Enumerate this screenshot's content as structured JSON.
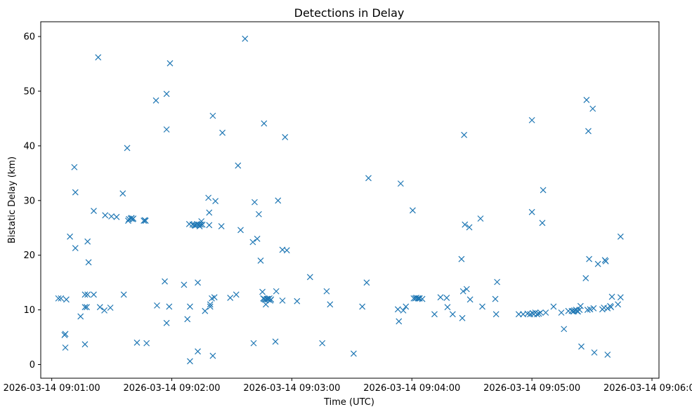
{
  "chart_data": {
    "type": "scatter",
    "title": "Detections in Delay",
    "xlabel": "Time (UTC)",
    "ylabel": "Bistatic Delay (km)",
    "marker": "x",
    "color": "#1f77b4",
    "x_unit": "seconds after 2026-03-14 09:00:00",
    "xlim": [
      54.5,
      363.5
    ],
    "ylim": [
      -2.5,
      62.7
    ],
    "x_ticks": [
      {
        "value": 60,
        "label": "2026-03-14 09:01:00"
      },
      {
        "value": 120,
        "label": "2026-03-14 09:02:00"
      },
      {
        "value": 180,
        "label": "2026-03-14 09:03:00"
      },
      {
        "value": 240,
        "label": "2026-03-14 09:04:00"
      },
      {
        "value": 300,
        "label": "2026-03-14 09:05:00"
      },
      {
        "value": 360,
        "label": "2026-03-14 09:06:00"
      }
    ],
    "y_ticks": [
      {
        "value": 0,
        "label": "0"
      },
      {
        "value": 10,
        "label": "10"
      },
      {
        "value": 20,
        "label": "20"
      },
      {
        "value": 30,
        "label": "30"
      },
      {
        "value": 40,
        "label": "40"
      },
      {
        "value": 50,
        "label": "50"
      },
      {
        "value": 60,
        "label": "60"
      }
    ],
    "points": [
      [
        63.3,
        12.1
      ],
      [
        64.6,
        12.1
      ],
      [
        66.4,
        5.4
      ],
      [
        66.8,
        5.6
      ],
      [
        66.8,
        3.1
      ],
      [
        67.3,
        11.9
      ],
      [
        69.1,
        23.4
      ],
      [
        71.3,
        36.1
      ],
      [
        71.8,
        31.5
      ],
      [
        71.8,
        21.3
      ],
      [
        74.4,
        8.8
      ],
      [
        76.6,
        12.8
      ],
      [
        76.6,
        10.5
      ],
      [
        76.6,
        3.7
      ],
      [
        77.5,
        10.5
      ],
      [
        77.9,
        12.8
      ],
      [
        77.9,
        22.5
      ],
      [
        78.4,
        18.7
      ],
      [
        81.0,
        12.8
      ],
      [
        81.0,
        28.1
      ],
      [
        83.2,
        56.2
      ],
      [
        84.1,
        10.5
      ],
      [
        86.3,
        9.9
      ],
      [
        86.7,
        27.3
      ],
      [
        89.3,
        10.4
      ],
      [
        89.8,
        27.1
      ],
      [
        92.4,
        27.0
      ],
      [
        95.5,
        31.3
      ],
      [
        96.0,
        12.8
      ],
      [
        97.7,
        39.6
      ],
      [
        98.2,
        26.3
      ],
      [
        98.6,
        26.6
      ],
      [
        99.5,
        26.7
      ],
      [
        99.9,
        26.8
      ],
      [
        100.4,
        26.6
      ],
      [
        100.8,
        26.7
      ],
      [
        102.6,
        4.0
      ],
      [
        106.0,
        26.3
      ],
      [
        106.5,
        26.4
      ],
      [
        106.9,
        26.3
      ],
      [
        107.4,
        3.9
      ],
      [
        112.1,
        48.3
      ],
      [
        112.6,
        10.8
      ],
      [
        116.5,
        15.2
      ],
      [
        117.4,
        43.0
      ],
      [
        117.4,
        7.6
      ],
      [
        117.4,
        49.5
      ],
      [
        118.7,
        10.6
      ],
      [
        119.1,
        55.1
      ],
      [
        126.1,
        14.6
      ],
      [
        127.8,
        8.3
      ],
      [
        128.7,
        25.7
      ],
      [
        129.1,
        10.6
      ],
      [
        129.1,
        0.6
      ],
      [
        130.4,
        25.6
      ],
      [
        131.3,
        25.5
      ],
      [
        131.7,
        25.4
      ],
      [
        132.2,
        25.5
      ],
      [
        132.6,
        25.7
      ],
      [
        133.0,
        2.4
      ],
      [
        133.0,
        15.0
      ],
      [
        133.5,
        25.6
      ],
      [
        133.9,
        25.3
      ],
      [
        134.4,
        25.6
      ],
      [
        134.8,
        26.2
      ],
      [
        135.3,
        25.6
      ],
      [
        136.6,
        9.8
      ],
      [
        138.3,
        30.5
      ],
      [
        138.7,
        27.8
      ],
      [
        138.7,
        25.5
      ],
      [
        139.2,
        10.6
      ],
      [
        139.2,
        11.0
      ],
      [
        140.0,
        12.1
      ],
      [
        140.5,
        45.5
      ],
      [
        140.5,
        1.6
      ],
      [
        141.3,
        12.3
      ],
      [
        141.8,
        29.9
      ],
      [
        144.8,
        25.3
      ],
      [
        145.3,
        42.4
      ],
      [
        149.2,
        12.2
      ],
      [
        152.2,
        12.8
      ],
      [
        153.1,
        36.4
      ],
      [
        154.4,
        24.6
      ],
      [
        156.6,
        59.6
      ],
      [
        160.5,
        22.4
      ],
      [
        160.9,
        3.9
      ],
      [
        161.4,
        29.7
      ],
      [
        162.7,
        23.0
      ],
      [
        163.5,
        27.5
      ],
      [
        164.4,
        19.0
      ],
      [
        165.3,
        13.3
      ],
      [
        165.7,
        12.1
      ],
      [
        166.1,
        44.1
      ],
      [
        166.1,
        12.0
      ],
      [
        166.6,
        11.9
      ],
      [
        167.0,
        11.0
      ],
      [
        167.5,
        12.0
      ],
      [
        167.9,
        12.0
      ],
      [
        168.3,
        11.9
      ],
      [
        168.8,
        12.1
      ],
      [
        169.2,
        11.7
      ],
      [
        169.6,
        11.9
      ],
      [
        171.8,
        4.2
      ],
      [
        172.2,
        13.4
      ],
      [
        173.1,
        30.0
      ],
      [
        175.3,
        21.0
      ],
      [
        175.3,
        11.7
      ],
      [
        176.6,
        41.6
      ],
      [
        177.5,
        20.9
      ],
      [
        182.6,
        11.6
      ],
      [
        189.1,
        16.0
      ],
      [
        195.2,
        3.9
      ],
      [
        197.4,
        13.4
      ],
      [
        199.1,
        11.0
      ],
      [
        210.9,
        2.0
      ],
      [
        215.2,
        10.6
      ],
      [
        217.4,
        15.0
      ],
      [
        218.3,
        34.1
      ],
      [
        233.0,
        10.1
      ],
      [
        233.5,
        7.9
      ],
      [
        234.4,
        33.1
      ],
      [
        235.7,
        9.9
      ],
      [
        237.0,
        10.6
      ],
      [
        240.4,
        28.2
      ],
      [
        240.9,
        12.1
      ],
      [
        241.7,
        12.1
      ],
      [
        242.2,
        12.2
      ],
      [
        243.0,
        12.1
      ],
      [
        243.5,
        12.1
      ],
      [
        243.9,
        12.1
      ],
      [
        245.2,
        12.0
      ],
      [
        251.3,
        9.2
      ],
      [
        254.3,
        12.3
      ],
      [
        257.4,
        12.2
      ],
      [
        257.8,
        10.5
      ],
      [
        260.4,
        9.2
      ],
      [
        264.8,
        19.3
      ],
      [
        265.2,
        8.5
      ],
      [
        265.6,
        13.4
      ],
      [
        266.1,
        42.0
      ],
      [
        266.5,
        25.6
      ],
      [
        267.4,
        13.8
      ],
      [
        268.7,
        25.1
      ],
      [
        269.1,
        11.9
      ],
      [
        274.3,
        26.7
      ],
      [
        275.2,
        10.6
      ],
      [
        281.7,
        12.0
      ],
      [
        282.1,
        9.2
      ],
      [
        282.6,
        15.1
      ],
      [
        293.4,
        9.2
      ],
      [
        295.6,
        9.2
      ],
      [
        297.8,
        9.3
      ],
      [
        299.1,
        9.2
      ],
      [
        300.0,
        44.7
      ],
      [
        300.0,
        27.9
      ],
      [
        300.4,
        9.4
      ],
      [
        300.9,
        9.2
      ],
      [
        301.7,
        9.5
      ],
      [
        302.6,
        9.2
      ],
      [
        303.5,
        9.3
      ],
      [
        304.3,
        9.5
      ],
      [
        305.2,
        25.9
      ],
      [
        305.6,
        31.9
      ],
      [
        306.9,
        9.5
      ],
      [
        310.8,
        10.6
      ],
      [
        314.7,
        9.5
      ],
      [
        316.0,
        6.5
      ],
      [
        318.2,
        9.8
      ],
      [
        319.9,
        9.8
      ],
      [
        320.8,
        9.7
      ],
      [
        321.2,
        9.9
      ],
      [
        322.1,
        10.0
      ],
      [
        322.5,
        9.8
      ],
      [
        323.0,
        9.7
      ],
      [
        323.8,
        10.0
      ],
      [
        324.3,
        10.7
      ],
      [
        324.7,
        3.3
      ],
      [
        326.9,
        15.8
      ],
      [
        327.3,
        48.4
      ],
      [
        327.8,
        10.0
      ],
      [
        328.2,
        42.7
      ],
      [
        328.6,
        19.3
      ],
      [
        329.1,
        10.1
      ],
      [
        330.4,
        46.8
      ],
      [
        330.8,
        10.3
      ],
      [
        331.2,
        2.2
      ],
      [
        333.0,
        18.4
      ],
      [
        335.2,
        10.1
      ],
      [
        336.0,
        10.4
      ],
      [
        336.5,
        19.1
      ],
      [
        336.9,
        18.9
      ],
      [
        337.8,
        1.8
      ],
      [
        337.8,
        10.3
      ],
      [
        339.1,
        10.7
      ],
      [
        339.5,
        10.5
      ],
      [
        340.0,
        12.4
      ],
      [
        343.0,
        11.0
      ],
      [
        344.3,
        12.3
      ],
      [
        344.3,
        23.4
      ]
    ]
  }
}
